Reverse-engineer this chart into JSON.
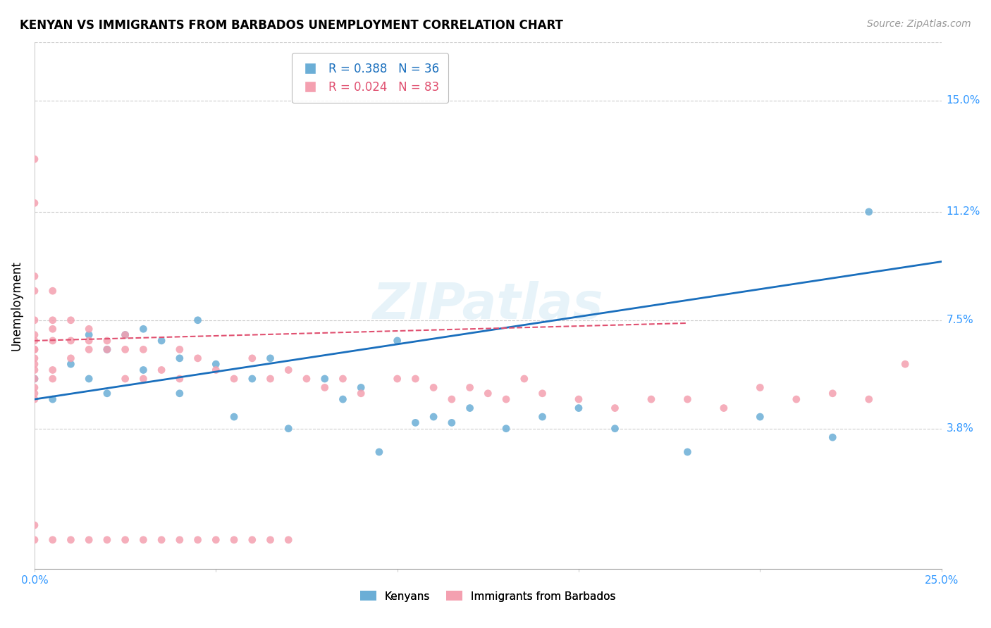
{
  "title": "KENYAN VS IMMIGRANTS FROM BARBADOS UNEMPLOYMENT CORRELATION CHART",
  "source": "Source: ZipAtlas.com",
  "ylabel": "Unemployment",
  "ytick_labels": [
    "3.8%",
    "7.5%",
    "11.2%",
    "15.0%"
  ],
  "ytick_values": [
    0.038,
    0.075,
    0.112,
    0.15
  ],
  "xlim": [
    0.0,
    0.25
  ],
  "ylim": [
    -0.01,
    0.17
  ],
  "legend_blue_r": "R = 0.388",
  "legend_blue_n": "N = 36",
  "legend_pink_r": "R = 0.024",
  "legend_pink_n": "N = 83",
  "legend_label_blue": "Kenyans",
  "legend_label_pink": "Immigrants from Barbados",
  "blue_color": "#6baed6",
  "pink_color": "#f4a0b0",
  "blue_line_color": "#1a6fbd",
  "pink_line_color": "#e05070",
  "watermark": "ZIPatlas",
  "blue_scatter_x": [
    0.0,
    0.005,
    0.01,
    0.015,
    0.015,
    0.02,
    0.02,
    0.025,
    0.03,
    0.03,
    0.035,
    0.04,
    0.04,
    0.045,
    0.05,
    0.055,
    0.06,
    0.065,
    0.07,
    0.08,
    0.085,
    0.09,
    0.095,
    0.1,
    0.105,
    0.11,
    0.115,
    0.12,
    0.13,
    0.14,
    0.15,
    0.16,
    0.18,
    0.2,
    0.22,
    0.23
  ],
  "blue_scatter_y": [
    0.055,
    0.048,
    0.06,
    0.07,
    0.055,
    0.065,
    0.05,
    0.07,
    0.072,
    0.058,
    0.068,
    0.062,
    0.05,
    0.075,
    0.06,
    0.042,
    0.055,
    0.062,
    0.038,
    0.055,
    0.048,
    0.052,
    0.03,
    0.068,
    0.04,
    0.042,
    0.04,
    0.045,
    0.038,
    0.042,
    0.045,
    0.038,
    0.03,
    0.042,
    0.035,
    0.112
  ],
  "pink_scatter_x": [
    0.0,
    0.0,
    0.0,
    0.0,
    0.0,
    0.0,
    0.0,
    0.0,
    0.0,
    0.0,
    0.0,
    0.0,
    0.0,
    0.0,
    0.0,
    0.0,
    0.0,
    0.005,
    0.005,
    0.005,
    0.005,
    0.005,
    0.005,
    0.01,
    0.01,
    0.01,
    0.015,
    0.015,
    0.015,
    0.02,
    0.02,
    0.025,
    0.025,
    0.025,
    0.03,
    0.03,
    0.035,
    0.04,
    0.04,
    0.045,
    0.05,
    0.055,
    0.06,
    0.065,
    0.07,
    0.075,
    0.08,
    0.085,
    0.09,
    0.1,
    0.105,
    0.11,
    0.115,
    0.12,
    0.125,
    0.13,
    0.135,
    0.14,
    0.15,
    0.16,
    0.17,
    0.18,
    0.19,
    0.2,
    0.21,
    0.22,
    0.23,
    0.24,
    0.0,
    0.005,
    0.01,
    0.015,
    0.02,
    0.025,
    0.03,
    0.035,
    0.04,
    0.045,
    0.05,
    0.055,
    0.06,
    0.065,
    0.07
  ],
  "pink_scatter_y": [
    0.13,
    0.115,
    0.09,
    0.085,
    0.075,
    0.07,
    0.068,
    0.065,
    0.065,
    0.062,
    0.06,
    0.058,
    0.055,
    0.052,
    0.05,
    0.048,
    0.005,
    0.085,
    0.075,
    0.072,
    0.068,
    0.058,
    0.055,
    0.075,
    0.068,
    0.062,
    0.072,
    0.068,
    0.065,
    0.068,
    0.065,
    0.07,
    0.065,
    0.055,
    0.065,
    0.055,
    0.058,
    0.065,
    0.055,
    0.062,
    0.058,
    0.055,
    0.062,
    0.055,
    0.058,
    0.055,
    0.052,
    0.055,
    0.05,
    0.055,
    0.055,
    0.052,
    0.048,
    0.052,
    0.05,
    0.048,
    0.055,
    0.05,
    0.048,
    0.045,
    0.048,
    0.048,
    0.045,
    0.052,
    0.048,
    0.05,
    0.048,
    0.06,
    0.0,
    0.0,
    0.0,
    0.0,
    0.0,
    0.0,
    0.0,
    0.0,
    0.0,
    0.0,
    0.0,
    0.0,
    0.0,
    0.0,
    0.0
  ],
  "blue_line_x": [
    0.0,
    0.25
  ],
  "blue_line_y_start": 0.048,
  "blue_line_y_end": 0.095,
  "pink_line_x": [
    0.0,
    0.18
  ],
  "pink_line_y_start": 0.068,
  "pink_line_y_end": 0.074
}
